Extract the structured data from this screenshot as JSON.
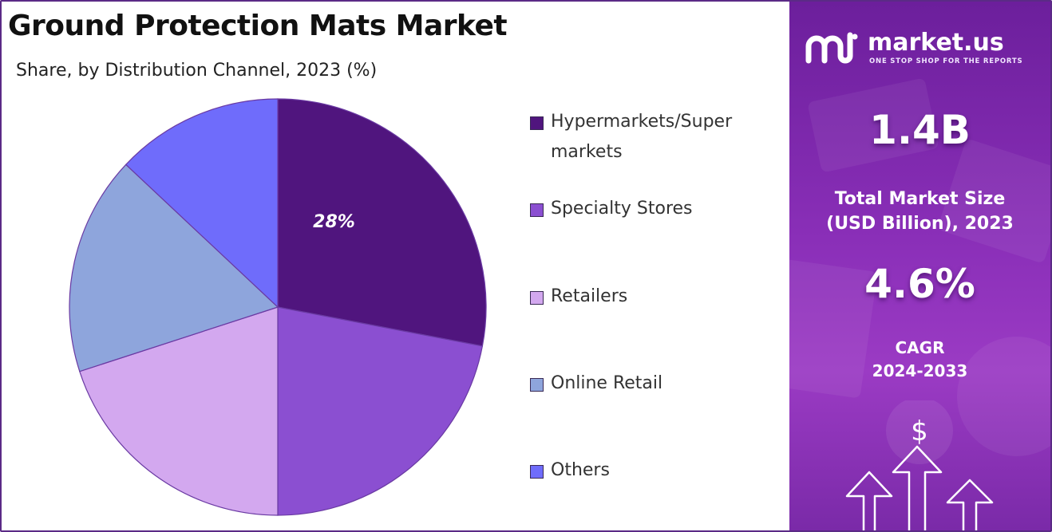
{
  "title": "Ground Protection Mats Market",
  "subtitle": "Share, by Distribution Channel, 2023 (%)",
  "chart_data": {
    "type": "pie",
    "title": "Ground Protection Mats Market",
    "subtitle": "Share, by Distribution Channel, 2023 (%)",
    "labels": [
      "Hypermarkets/Super markets",
      "Specialty Stores",
      "Retailers",
      "Online Retail",
      "Others"
    ],
    "values": [
      28,
      22,
      20,
      17,
      13
    ],
    "colors": [
      "#50157e",
      "#8b4fd1",
      "#d3a8ef",
      "#8ea5dc",
      "#6f6cfb"
    ],
    "data_labels": [
      "28%",
      "",
      "",
      "",
      ""
    ],
    "legend_position": "right"
  },
  "legend": [
    {
      "label": "Hypermarkets/Super markets",
      "color": "#50157e"
    },
    {
      "label": "Specialty Stores",
      "color": "#8b4fd1"
    },
    {
      "label": "Retailers",
      "color": "#d3a8ef"
    },
    {
      "label": "Online Retail",
      "color": "#8ea5dc"
    },
    {
      "label": "Others",
      "color": "#6f6cfb"
    }
  ],
  "brand": {
    "name": "market.us",
    "tagline": "ONE STOP SHOP FOR THE REPORTS",
    "logo_icon": "market-us-logo-icon"
  },
  "stats": {
    "market_size_value": "1.4B",
    "market_size_label_line1": "Total Market Size",
    "market_size_label_line2": "(USD Billion), 2023",
    "cagr_value": "4.6%",
    "cagr_label_line1": "CAGR",
    "cagr_label_line2": "2024-2033"
  },
  "decor": {
    "dollar_symbol": "$",
    "arrow_icon": "up-arrow-icon"
  },
  "colors": {
    "panel_gradient_top": "#6c1f9c",
    "panel_gradient_bottom": "#9b3bc4",
    "frame_border": "#5b2a86"
  }
}
